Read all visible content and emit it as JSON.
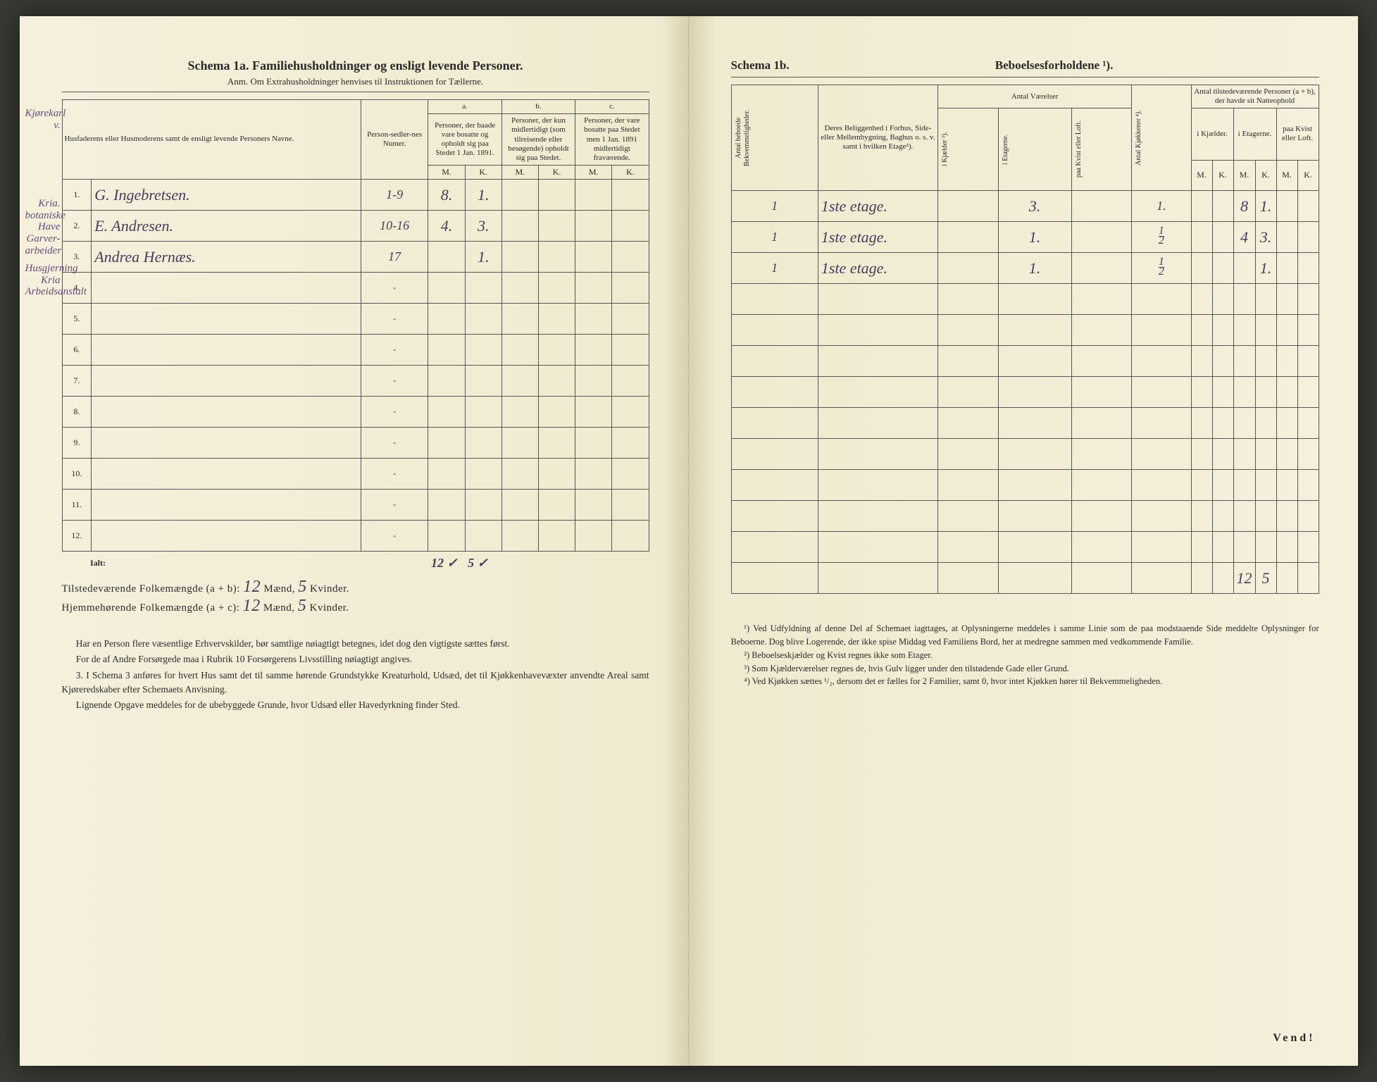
{
  "left": {
    "title": "Schema 1a.  Familiehusholdninger og ensligt levende Personer.",
    "subtitle": "Anm.  Om Extrahusholdninger henvises til Instruktionen for Tællerne.",
    "headers": {
      "name": "Husfaderens eller Husmoderens samt de ensligt levende Personers Navne.",
      "person_num": "Person-sedler-nes Numer.",
      "col_a_top": "a.",
      "col_a": "Personer, der baade vare bosatte og opholdt sig paa Stedet 1 Jan. 1891.",
      "col_b_top": "b.",
      "col_b": "Personer, der kun midlertidigt (som tilreisende eller besøgende) opholdt sig paa Stedet.",
      "col_c_top": "c.",
      "col_c": "Personer, der vare bosatte paa Stedet men 1 Jan. 1891 midlertidigt fraværende.",
      "M": "M.",
      "K": "K."
    },
    "margin_top": "Kjørekarl v.",
    "margin_notes": [
      "Kria. botaniske Have",
      "Garver-arbeider",
      "Husgjerning Kria Arbeidsanstalt"
    ],
    "rows": [
      {
        "n": "1.",
        "name": "G. Ingebretsen.",
        "pn": "1-9",
        "aM": "8.",
        "aK": "1.",
        "bM": "",
        "bK": "",
        "cM": "",
        "cK": ""
      },
      {
        "n": "2.",
        "name": "E. Andresen.",
        "pn": "10-16",
        "aM": "4.",
        "aK": "3.",
        "bM": "",
        "bK": "",
        "cM": "",
        "cK": ""
      },
      {
        "n": "3.",
        "name": "Andrea Hernæs.",
        "pn": "17",
        "aM": "",
        "aK": "1.",
        "bM": "",
        "bK": "",
        "cM": "",
        "cK": ""
      }
    ],
    "empty_rows": [
      "4.",
      "5.",
      "6.",
      "7.",
      "8.",
      "9.",
      "10.",
      "11.",
      "12."
    ],
    "ialt": "Ialt:",
    "ialt_aM": "12 ✓",
    "ialt_aK": "5 ✓",
    "summary1_label": "Tilstedeværende Folkemængde (a + b):",
    "summary1_m": "12",
    "summary1_mlabel": "Mænd,",
    "summary1_k": "5",
    "summary1_klabel": "Kvinder.",
    "summary2_label": "Hjemmehørende Folkemængde (a + c):",
    "summary2_m": "12",
    "summary2_k": "5",
    "foot": [
      "Har en Person flere væsentlige Erhvervskilder, bør samtlige nøiagtigt betegnes, idet dog den vigtigste sættes først.",
      "For de af Andre Forsørgede maa i Rubrik 10 Forsørgerens Livsstilling nøiagtigt angives.",
      "3. I Schema 3 anføres for hvert Hus samt det til samme hørende Grundstykke Kreaturhold, Udsæd, det til Kjøkkenhavevæxter anvendte Areal samt Kjøreredskaber efter Schemaets Anvisning.",
      "Lignende Opgave meddeles for de ubebyggede Grunde, hvor Udsæd eller Havedyrkning finder Sted."
    ]
  },
  "right": {
    "title_left": "Schema 1b.",
    "title_right": "Beboelsesforholdene ¹).",
    "headers": {
      "antal_bekv": "Antal beboede Bekvemmeligheder.",
      "belig": "Deres Beliggenhed i Forhus, Side- eller Mellembygning, Baghus o. s. v. samt i hvilken Etage²).",
      "antal_vaer": "Antal Værelser",
      "i_kjael": "i Kjælder ³).",
      "i_etag": "i Etagerne.",
      "paa_kvist": "paa Kvist eller Loft.",
      "antal_kjok": "Antal Kjøkkener ⁴).",
      "antal_pers": "Antal tilstedeværende Personer (a + b), der havde sit Natteophold",
      "i_kjael2": "i Kjælder.",
      "i_etag2": "i Etagerne.",
      "paa_kvist2": "paa Kvist eller Loft.",
      "M": "M.",
      "K": "K."
    },
    "rows": [
      {
        "bk": "1",
        "bel": "1ste etage.",
        "kj": "",
        "et": "3.",
        "kv": "",
        "kok": "1.",
        "kjM": "",
        "kjK": "",
        "etM": "8",
        "etK": "1.",
        "kvM": "",
        "kvK": ""
      },
      {
        "bk": "1",
        "bel": "1ste etage.",
        "kj": "",
        "et": "1.",
        "kv": "",
        "kok": "½",
        "kjM": "",
        "kjK": "",
        "etM": "4",
        "etK": "3.",
        "kvM": "",
        "kvK": ""
      },
      {
        "bk": "1",
        "bel": "1ste etage.",
        "kj": "",
        "et": "1.",
        "kv": "",
        "kok": "½",
        "kjM": "",
        "kjK": "",
        "etM": "",
        "etK": "1.",
        "kvM": "",
        "kvK": ""
      }
    ],
    "sum_etM": "12",
    "sum_etK": "5",
    "footnotes": [
      "¹) Ved Udfyldning af denne Del af Schemaet iagttages, at Oplysningerne meddeles i samme Linie som de paa modstaaende Side meddelte Oplysninger for Beboerne. Dog blive Logerende, der ikke spise Middag ved Familiens Bord, her at medregne sammen med vedkommende Familie.",
      "²) Beboelseskjælder og Kvist regnes ikke som Etager.",
      "³) Som Kjælderværelser regnes de, hvis Gulv ligger under den tilstødende Gade eller Grund.",
      "⁴) Ved Kjøkken sættes ¹/₂, dersom det er fælles for 2 Familier, samt 0, hvor intet Kjøkken hører til Bekvemmeligheden."
    ],
    "vend": "Vend!"
  }
}
